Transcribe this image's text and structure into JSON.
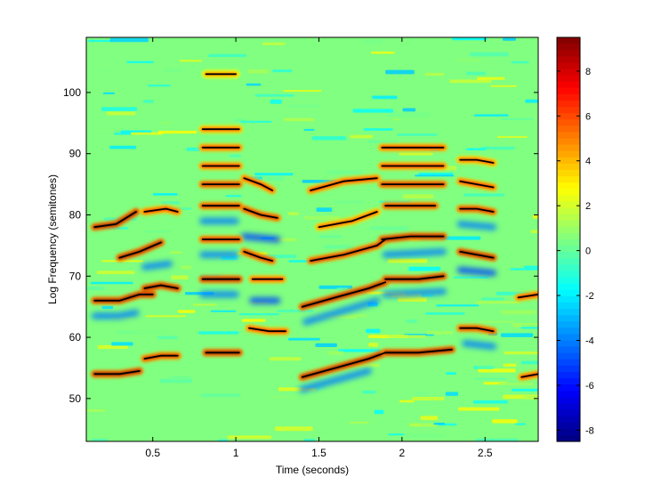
{
  "chart_data": {
    "type": "heatmap",
    "title": "",
    "xlabel": "Time (seconds)",
    "ylabel": "Log Frequency (semitones)",
    "xlim": [
      0.1,
      2.82
    ],
    "ylim": [
      43,
      109
    ],
    "x_ticks": [
      0.5,
      1,
      1.5,
      2,
      2.5
    ],
    "x_tick_labels": [
      "0.5",
      "1",
      "1.5",
      "2",
      "2.5"
    ],
    "y_ticks": [
      50,
      60,
      70,
      80,
      90,
      100
    ],
    "y_tick_labels": [
      "50",
      "60",
      "70",
      "80",
      "90",
      "100"
    ],
    "colorbar": {
      "colormap": "jet",
      "clim": [
        -8.5,
        9.5
      ],
      "ticks": [
        -8,
        -6,
        -4,
        -2,
        0,
        2,
        4,
        6,
        8
      ],
      "tick_labels": [
        "-8",
        "-6",
        "-4",
        "-2",
        "0",
        "2",
        "4",
        "6",
        "8"
      ]
    },
    "background_value": 0.5,
    "ridges": [
      {
        "t": [
          0.15,
          0.28,
          0.4
        ],
        "f": [
          78,
          78.5,
          80.5
        ],
        "value": 9
      },
      {
        "t": [
          0.15,
          0.3,
          0.42,
          0.5
        ],
        "f": [
          66,
          66,
          67,
          67
        ],
        "value": 9
      },
      {
        "t": [
          0.15,
          0.3,
          0.42
        ],
        "f": [
          54,
          54,
          54.5
        ],
        "value": 9
      },
      {
        "t": [
          0.3,
          0.42,
          0.55
        ],
        "f": [
          73,
          74,
          75.5
        ],
        "value": 9
      },
      {
        "t": [
          0.45,
          0.55,
          0.65
        ],
        "f": [
          68,
          68.5,
          68
        ],
        "value": 9
      },
      {
        "t": [
          0.45,
          0.55,
          0.65
        ],
        "f": [
          56.5,
          57,
          57
        ],
        "value": 8
      },
      {
        "t": [
          0.45,
          0.58,
          0.65
        ],
        "f": [
          80.5,
          81,
          80.5
        ],
        "value": 7
      },
      {
        "t": [
          0.82,
          0.95,
          1.02
        ],
        "f": [
          57.5,
          57.5,
          57.5
        ],
        "value": 9
      },
      {
        "t": [
          0.8,
          0.95,
          1.02
        ],
        "f": [
          69.5,
          69.5,
          69.5
        ],
        "value": 9
      },
      {
        "t": [
          0.8,
          0.95,
          1.02
        ],
        "f": [
          76,
          76,
          76
        ],
        "value": 8
      },
      {
        "t": [
          0.8,
          0.95,
          1.02
        ],
        "f": [
          81.5,
          81.5,
          81.5
        ],
        "value": 8
      },
      {
        "t": [
          0.8,
          0.95,
          1.02
        ],
        "f": [
          85,
          85,
          85
        ],
        "value": 8
      },
      {
        "t": [
          0.8,
          0.95,
          1.02
        ],
        "f": [
          88,
          88,
          88
        ],
        "value": 7
      },
      {
        "t": [
          0.8,
          0.95,
          1.02
        ],
        "f": [
          91,
          91,
          91
        ],
        "value": 7
      },
      {
        "t": [
          0.8,
          0.95,
          1.02
        ],
        "f": [
          94,
          94,
          94
        ],
        "value": 6
      },
      {
        "t": [
          0.82,
          0.95,
          1.0
        ],
        "f": [
          103,
          103,
          103
        ],
        "value": 5
      },
      {
        "t": [
          1.05,
          1.15,
          1.22
        ],
        "f": [
          74,
          73,
          72.5
        ],
        "value": 8
      },
      {
        "t": [
          1.05,
          1.15,
          1.25
        ],
        "f": [
          81,
          80,
          79.5
        ],
        "value": 8
      },
      {
        "t": [
          1.05,
          1.15,
          1.22
        ],
        "f": [
          86,
          85,
          84
        ],
        "value": 7
      },
      {
        "t": [
          1.08,
          1.2,
          1.3
        ],
        "f": [
          61.5,
          61,
          61
        ],
        "value": 7
      },
      {
        "t": [
          1.1,
          1.2,
          1.28
        ],
        "f": [
          69.5,
          69.5,
          69.5
        ],
        "value": 7
      },
      {
        "t": [
          1.4,
          1.6,
          1.8,
          1.9
        ],
        "f": [
          53.5,
          55,
          56.5,
          57.5
        ],
        "value": 9
      },
      {
        "t": [
          1.4,
          1.6,
          1.8,
          1.9
        ],
        "f": [
          65,
          66.5,
          68,
          69
        ],
        "value": 9
      },
      {
        "t": [
          1.45,
          1.65,
          1.85,
          1.9
        ],
        "f": [
          72.5,
          73.5,
          75,
          76
        ],
        "value": 8
      },
      {
        "t": [
          1.45,
          1.65,
          1.85
        ],
        "f": [
          84,
          85.5,
          86
        ],
        "value": 7
      },
      {
        "t": [
          1.5,
          1.7,
          1.85
        ],
        "f": [
          78,
          79,
          80.5
        ],
        "value": 6
      },
      {
        "t": [
          1.9,
          2.1,
          2.3
        ],
        "f": [
          57.5,
          57.5,
          58
        ],
        "value": 9
      },
      {
        "t": [
          1.9,
          2.1,
          2.25
        ],
        "f": [
          69.5,
          69.5,
          70
        ],
        "value": 9
      },
      {
        "t": [
          1.88,
          2.05,
          2.25
        ],
        "f": [
          76,
          76.5,
          76.5
        ],
        "value": 9
      },
      {
        "t": [
          1.9,
          2.1,
          2.2
        ],
        "f": [
          81.5,
          81.5,
          81.5
        ],
        "value": 8
      },
      {
        "t": [
          1.88,
          2.05,
          2.25
        ],
        "f": [
          85,
          85,
          85
        ],
        "value": 8
      },
      {
        "t": [
          1.88,
          2.05,
          2.25
        ],
        "f": [
          88,
          88,
          88
        ],
        "value": 7
      },
      {
        "t": [
          1.88,
          2.05,
          2.25
        ],
        "f": [
          91,
          91,
          91
        ],
        "value": 7
      },
      {
        "t": [
          2.35,
          2.45,
          2.55
        ],
        "f": [
          61.5,
          61.5,
          61
        ],
        "value": 8
      },
      {
        "t": [
          2.35,
          2.45,
          2.55
        ],
        "f": [
          74,
          73.5,
          73
        ],
        "value": 9
      },
      {
        "t": [
          2.35,
          2.45,
          2.55
        ],
        "f": [
          81,
          81,
          80.5
        ],
        "value": 8
      },
      {
        "t": [
          2.35,
          2.45,
          2.55
        ],
        "f": [
          85.5,
          85,
          84.5
        ],
        "value": 7
      },
      {
        "t": [
          2.35,
          2.45,
          2.55
        ],
        "f": [
          89,
          89,
          88.5
        ],
        "value": 6
      },
      {
        "t": [
          2.7,
          2.82
        ],
        "f": [
          66.5,
          67
        ],
        "value": 7
      },
      {
        "t": [
          2.72,
          2.82
        ],
        "f": [
          53.5,
          54
        ],
        "value": 7
      }
    ],
    "negative_bands": [
      {
        "t": [
          0.15,
          0.3,
          0.4
        ],
        "f": [
          63.5,
          63.5,
          64
        ],
        "value": -4
      },
      {
        "t": [
          0.45,
          0.6
        ],
        "f": [
          71.5,
          72
        ],
        "value": -4
      },
      {
        "t": [
          0.8,
          1.0
        ],
        "f": [
          67,
          67
        ],
        "value": -4
      },
      {
        "t": [
          0.8,
          1.0
        ],
        "f": [
          73.5,
          73.5
        ],
        "value": -4
      },
      {
        "t": [
          0.8,
          1.0
        ],
        "f": [
          79,
          79
        ],
        "value": -4
      },
      {
        "t": [
          1.05,
          1.25
        ],
        "f": [
          76.5,
          76
        ],
        "value": -5
      },
      {
        "t": [
          1.1,
          1.25
        ],
        "f": [
          66,
          66
        ],
        "value": -5
      },
      {
        "t": [
          1.4,
          1.8
        ],
        "f": [
          51.5,
          54.5
        ],
        "value": -4
      },
      {
        "t": [
          1.42,
          1.85
        ],
        "f": [
          62.5,
          66
        ],
        "value": -4
      },
      {
        "t": [
          1.9,
          2.25
        ],
        "f": [
          67,
          67.5
        ],
        "value": -4
      },
      {
        "t": [
          1.9,
          2.25
        ],
        "f": [
          73.5,
          74
        ],
        "value": -4
      },
      {
        "t": [
          2.35,
          2.55
        ],
        "f": [
          71,
          70.5
        ],
        "value": -5
      },
      {
        "t": [
          2.35,
          2.55
        ],
        "f": [
          78.5,
          78
        ],
        "value": -4
      },
      {
        "t": [
          2.38,
          2.55
        ],
        "f": [
          59,
          58.5
        ],
        "value": -4
      }
    ]
  }
}
